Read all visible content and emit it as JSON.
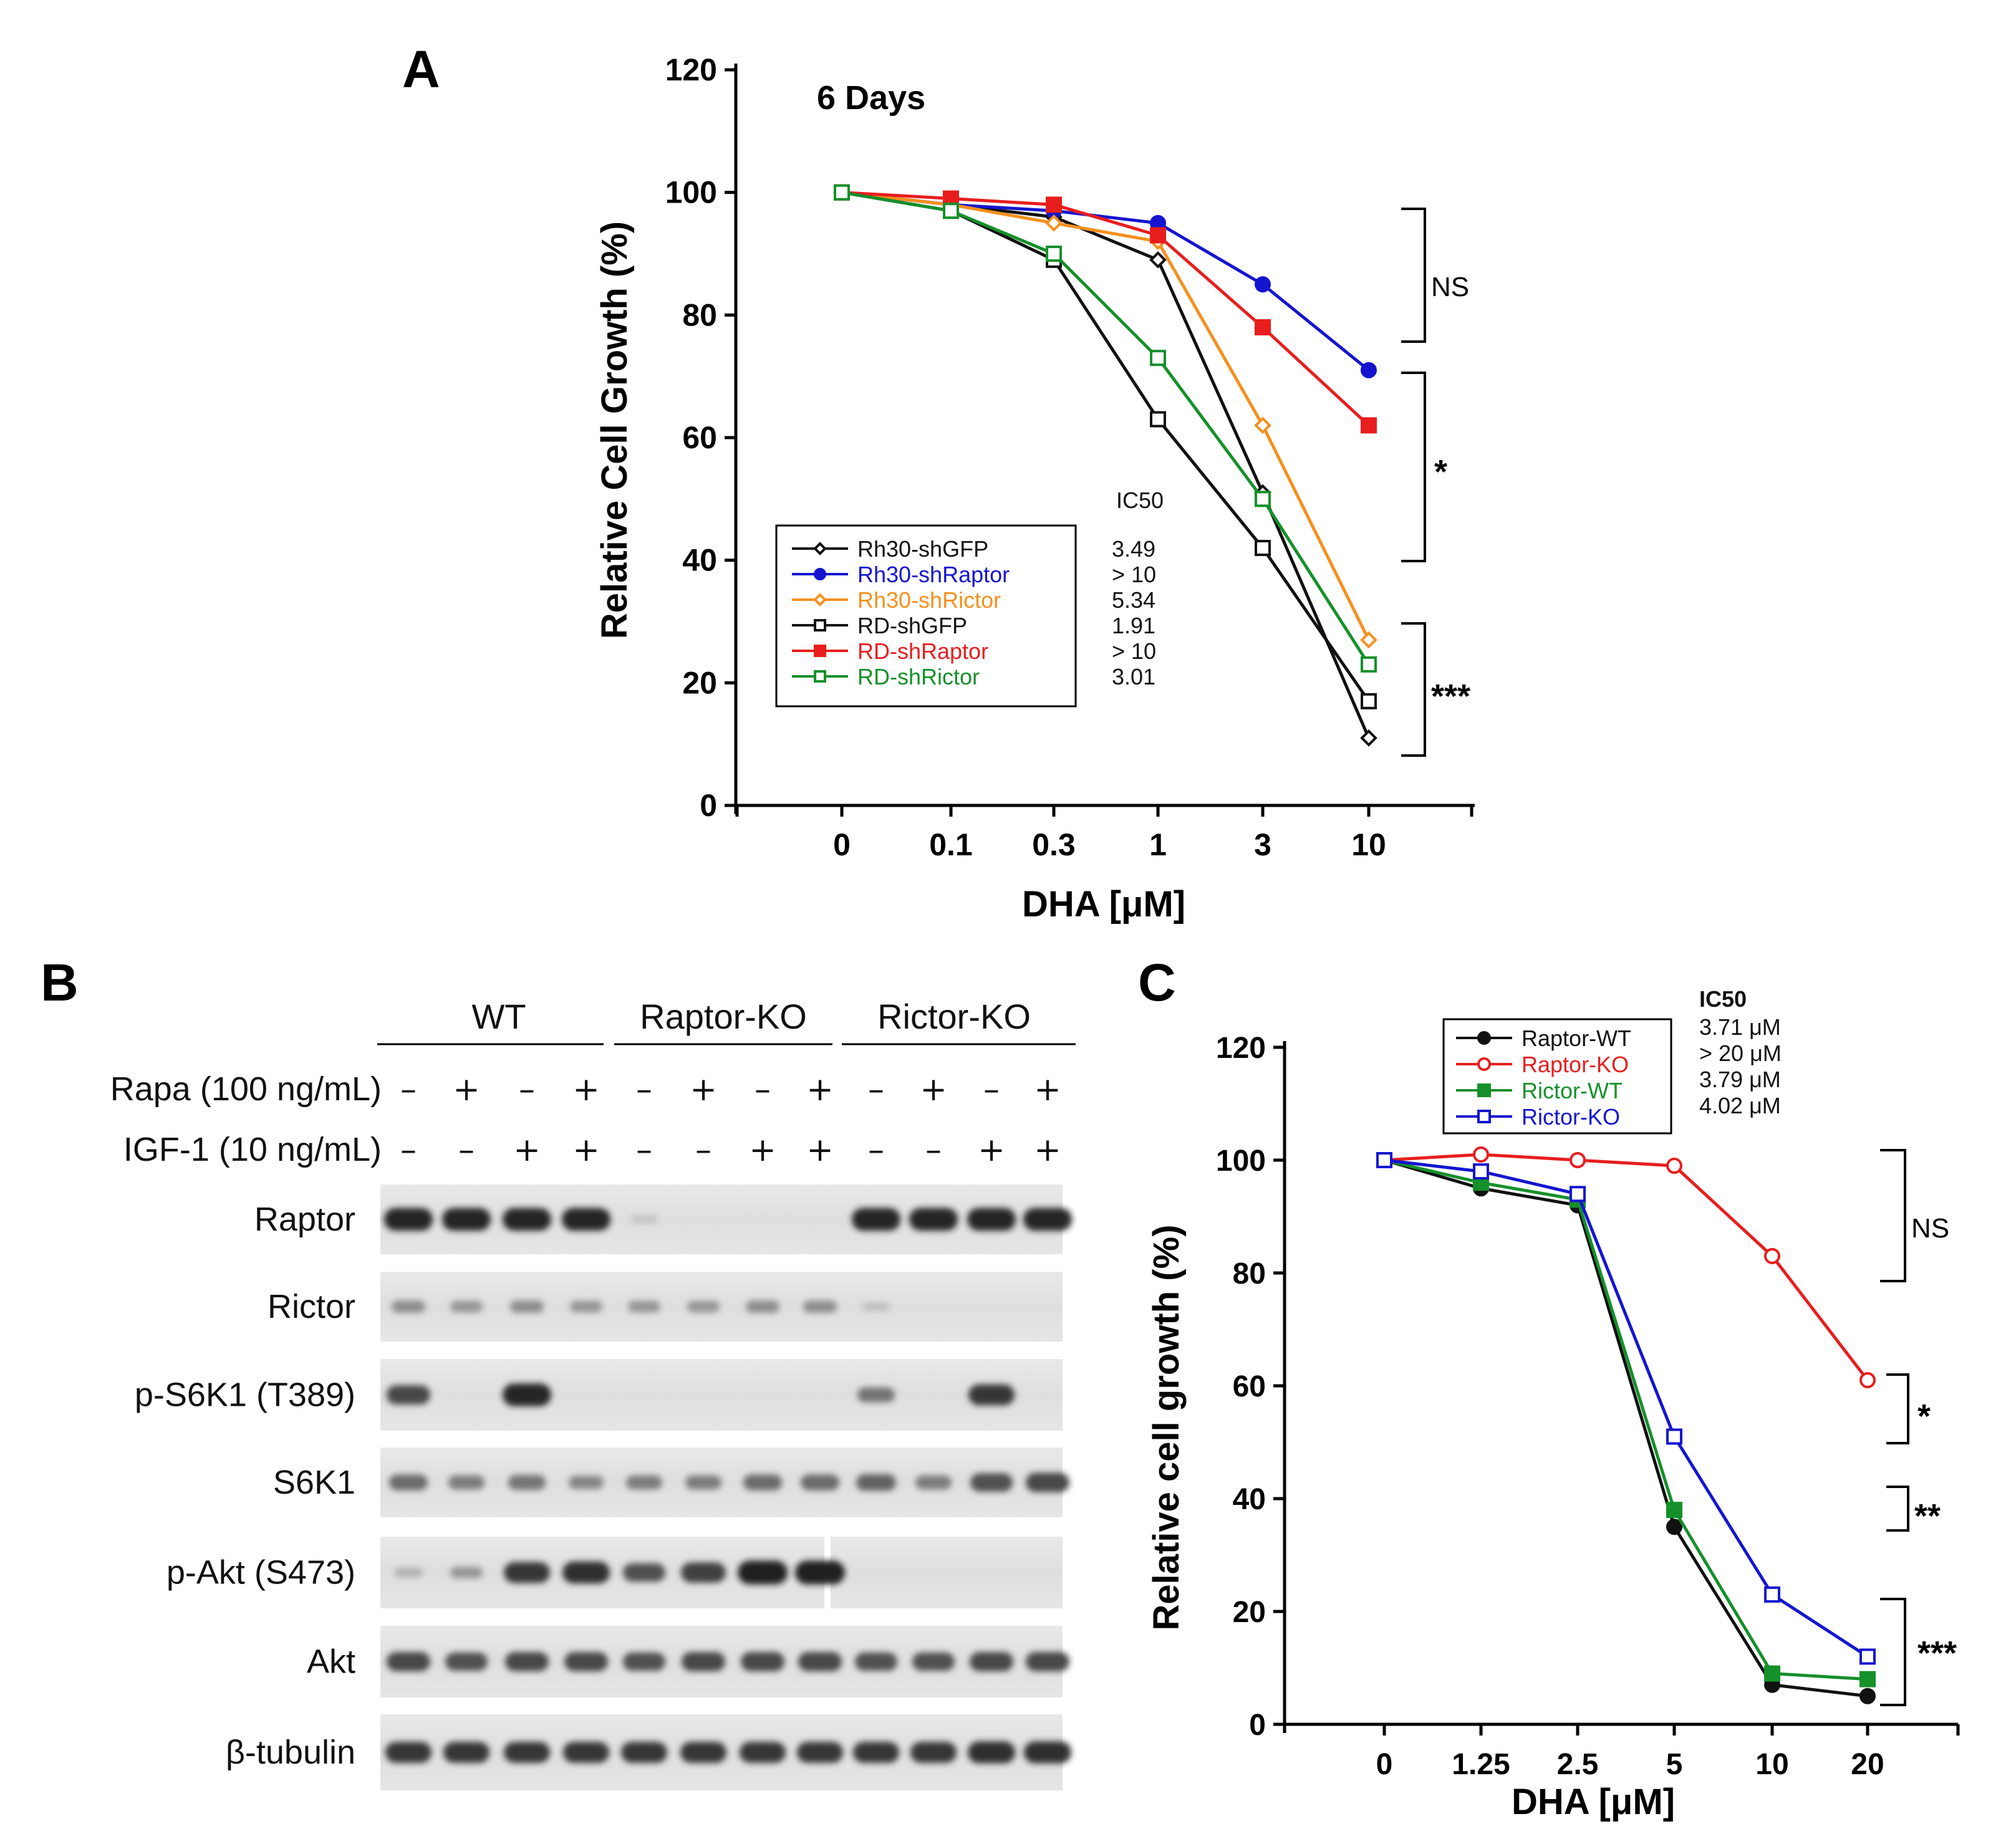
{
  "panel_labels": {
    "a": "A",
    "b": "B",
    "c": "C"
  },
  "chart_data": [
    {
      "type": "line",
      "panel": "A",
      "title": "6 Days",
      "xlabel": "DHA [μM]",
      "ylabel": "Relative Cell Growth (%)",
      "categories": [
        "0",
        "0.1",
        "0.3",
        "1",
        "3",
        "10"
      ],
      "yticks": [
        "0",
        "20",
        "40",
        "60",
        "80",
        "100",
        "120"
      ],
      "ylim": [
        0,
        120
      ],
      "ic50_header": "IC50",
      "series": [
        {
          "name": "Rh30-shGFP",
          "color": "#111111",
          "marker": "diamond-open",
          "ic50": "3.49",
          "values": [
            100,
            98,
            96,
            89,
            51,
            11
          ]
        },
        {
          "name": "Rh30-shRaptor",
          "color": "#1515d0",
          "marker": "circle-filled",
          "ic50": "> 10",
          "values": [
            100,
            98,
            97,
            95,
            85,
            71
          ]
        },
        {
          "name": "Rh30-shRictor",
          "color": "#f5901e",
          "marker": "diamond-open",
          "ic50": "5.34",
          "values": [
            100,
            98,
            95,
            92,
            62,
            27
          ]
        },
        {
          "name": "RD-shGFP",
          "color": "#111111",
          "marker": "square-open",
          "ic50": "1.91",
          "values": [
            100,
            97,
            89,
            63,
            42,
            17
          ]
        },
        {
          "name": "RD-shRaptor",
          "color": "#e81e1e",
          "marker": "square-filled",
          "ic50": "> 10",
          "values": [
            100,
            99,
            98,
            93,
            78,
            62
          ]
        },
        {
          "name": "RD-shRictor",
          "color": "#15902a",
          "marker": "square-open",
          "ic50": "3.01",
          "values": [
            100,
            97,
            90,
            73,
            50,
            23
          ]
        }
      ],
      "significance": [
        "NS",
        "*",
        "***"
      ]
    },
    {
      "type": "line",
      "panel": "C",
      "title": "",
      "xlabel": "DHA [μM]",
      "ylabel": "Relative cell growth (%)",
      "categories": [
        "0",
        "1.25",
        "2.5",
        "5",
        "10",
        "20"
      ],
      "yticks": [
        "0",
        "20",
        "40",
        "60",
        "80",
        "100",
        "120"
      ],
      "ylim": [
        0,
        120
      ],
      "ic50_header": "IC50",
      "series": [
        {
          "name": "Raptor-WT",
          "color": "#111111",
          "marker": "circle-filled",
          "ic50": "3.71 μM",
          "values": [
            100,
            95,
            92,
            35,
            7,
            5
          ]
        },
        {
          "name": "Raptor-KO",
          "color": "#e81e1e",
          "marker": "circle-open",
          "ic50": "> 20 μM",
          "values": [
            100,
            101,
            100,
            99,
            83,
            61
          ]
        },
        {
          "name": "Rictor-WT",
          "color": "#15902a",
          "marker": "square-filled",
          "ic50": "3.79 μM",
          "values": [
            100,
            96,
            93,
            38,
            9,
            8
          ]
        },
        {
          "name": "Rictor-KO",
          "color": "#1515d0",
          "marker": "square-open",
          "ic50": "4.02 μM",
          "values": [
            100,
            98,
            94,
            51,
            23,
            12
          ]
        }
      ],
      "significance": [
        "NS",
        "*",
        "**",
        "***"
      ]
    }
  ],
  "blot": {
    "groups": [
      "WT",
      "Raptor-KO",
      "Rictor-KO"
    ],
    "treatments": [
      {
        "label": "Rapa (100 ng/mL)",
        "signs": [
          "–",
          "+",
          "–",
          "+",
          "–",
          "+",
          "–",
          "+",
          "–",
          "+",
          "–",
          "+"
        ]
      },
      {
        "label": "IGF-1 (10 ng/mL)",
        "signs": [
          "–",
          "–",
          "+",
          "+",
          "–",
          "–",
          "+",
          "+",
          "–",
          "–",
          "+",
          "+"
        ]
      }
    ],
    "rows": [
      {
        "label": "Raptor",
        "bands": [
          0.95,
          0.95,
          0.95,
          0.95,
          0.05,
          0,
          0,
          0,
          0.95,
          0.95,
          0.95,
          0.95
        ]
      },
      {
        "label": "Rictor",
        "bands": [
          0.35,
          0.3,
          0.35,
          0.3,
          0.3,
          0.3,
          0.35,
          0.35,
          0.08,
          0,
          0,
          0
        ]
      },
      {
        "label": "p-S6K1 (T389)",
        "bands": [
          0.75,
          0,
          0.95,
          0,
          0,
          0,
          0,
          0,
          0.5,
          0,
          0.85,
          0
        ]
      },
      {
        "label": "S6K1",
        "bands": [
          0.55,
          0.45,
          0.5,
          0.4,
          0.45,
          0.45,
          0.55,
          0.55,
          0.6,
          0.45,
          0.7,
          0.75
        ]
      },
      {
        "label": "p-Akt (S473)",
        "bands": [
          0.15,
          0.3,
          0.85,
          0.9,
          0.7,
          0.8,
          1.0,
          1.0,
          0,
          0,
          0,
          0
        ]
      },
      {
        "label": "Akt",
        "bands": [
          0.75,
          0.7,
          0.75,
          0.75,
          0.7,
          0.75,
          0.75,
          0.75,
          0.7,
          0.7,
          0.75,
          0.75
        ]
      },
      {
        "label": "β-tubulin",
        "bands": [
          0.85,
          0.85,
          0.85,
          0.85,
          0.85,
          0.85,
          0.85,
          0.85,
          0.85,
          0.85,
          0.9,
          0.9
        ]
      }
    ]
  }
}
